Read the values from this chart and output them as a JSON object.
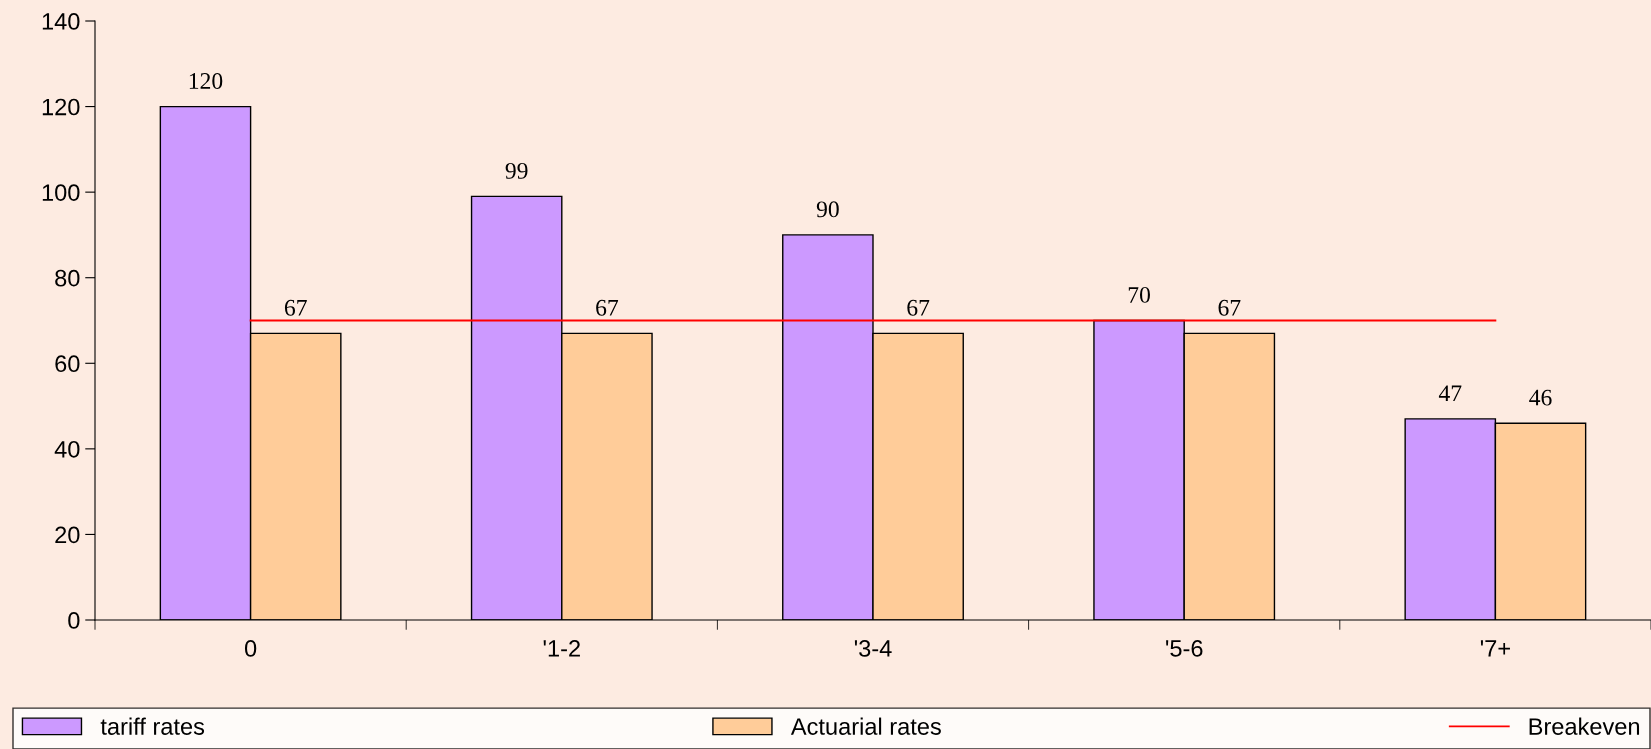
{
  "chart_data": {
    "type": "bar",
    "categories": [
      "0",
      "'1-2",
      "'3-4",
      "'5-6",
      "'7+"
    ],
    "series": [
      {
        "name": "tariff rates",
        "color": "#cc99ff",
        "values": [
          120,
          99,
          90,
          70,
          47
        ],
        "value_labels": [
          "120",
          "99",
          "90",
          "70",
          "47"
        ]
      },
      {
        "name": "Actuarial rates",
        "color": "#ffcc99",
        "values": [
          67,
          67,
          67,
          67,
          46
        ],
        "value_labels": [
          "67",
          "67",
          "67",
          "67",
          "46"
        ]
      },
      {
        "name": "Breakeven",
        "type": "line",
        "color": "#ff0000",
        "values": [
          70,
          70,
          70,
          70,
          70
        ]
      }
    ],
    "ylim": [
      0,
      140
    ],
    "yticks": [
      0,
      20,
      40,
      60,
      80,
      100,
      120,
      140
    ],
    "legend": "bottom",
    "grid": false
  }
}
